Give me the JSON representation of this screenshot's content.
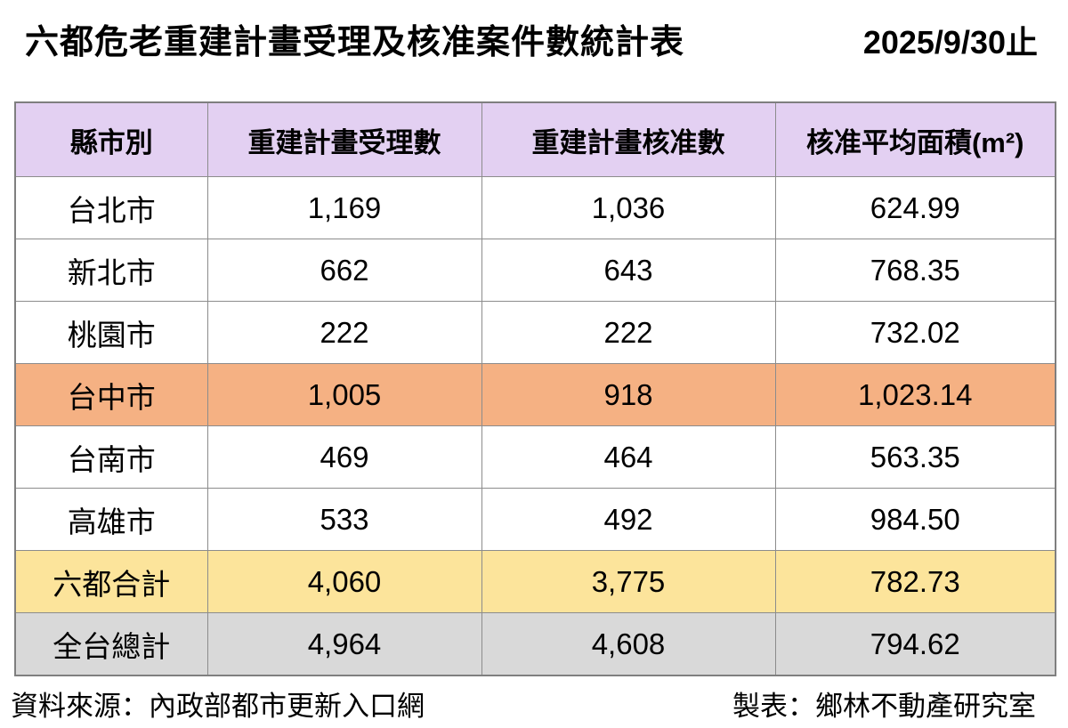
{
  "header": {
    "title": "六都危老重建計畫受理及核准案件數統計表",
    "date": "2025/9/30止"
  },
  "table": {
    "columns": [
      "縣市別",
      "重建計畫受理數",
      "重建計畫核准數",
      "核准平均面積(m²)"
    ],
    "rows": [
      {
        "label": "台北市",
        "accepted": "1,169",
        "approved": "1,036",
        "avg_area": "624.99",
        "highlight": "none"
      },
      {
        "label": "新北市",
        "accepted": "662",
        "approved": "643",
        "avg_area": "768.35",
        "highlight": "none"
      },
      {
        "label": "桃園市",
        "accepted": "222",
        "approved": "222",
        "avg_area": "732.02",
        "highlight": "none"
      },
      {
        "label": "台中市",
        "accepted": "1,005",
        "approved": "918",
        "avg_area": "1,023.14",
        "highlight": "orange"
      },
      {
        "label": "台南市",
        "accepted": "469",
        "approved": "464",
        "avg_area": "563.35",
        "highlight": "none"
      },
      {
        "label": "高雄市",
        "accepted": "533",
        "approved": "492",
        "avg_area": "984.50",
        "highlight": "none"
      },
      {
        "label": "六都合計",
        "accepted": "4,060",
        "approved": "3,775",
        "avg_area": "782.73",
        "highlight": "yellow"
      },
      {
        "label": "全台總計",
        "accepted": "4,964",
        "approved": "4,608",
        "avg_area": "794.62",
        "highlight": "gray"
      }
    ]
  },
  "footer": {
    "source": "資料來源：內政部都市更新入口網",
    "credit": "製表：鄉林不動產研究室"
  },
  "colors": {
    "header_bg": "#e3d0f2",
    "orange_row_bg": "#f5b183",
    "yellow_row_bg": "#fce49b",
    "gray_row_bg": "#d9d9d9",
    "inner_border": "#8c8c8c",
    "outer_border": "#7f7f7f",
    "text": "#000000",
    "background": "#ffffff"
  }
}
